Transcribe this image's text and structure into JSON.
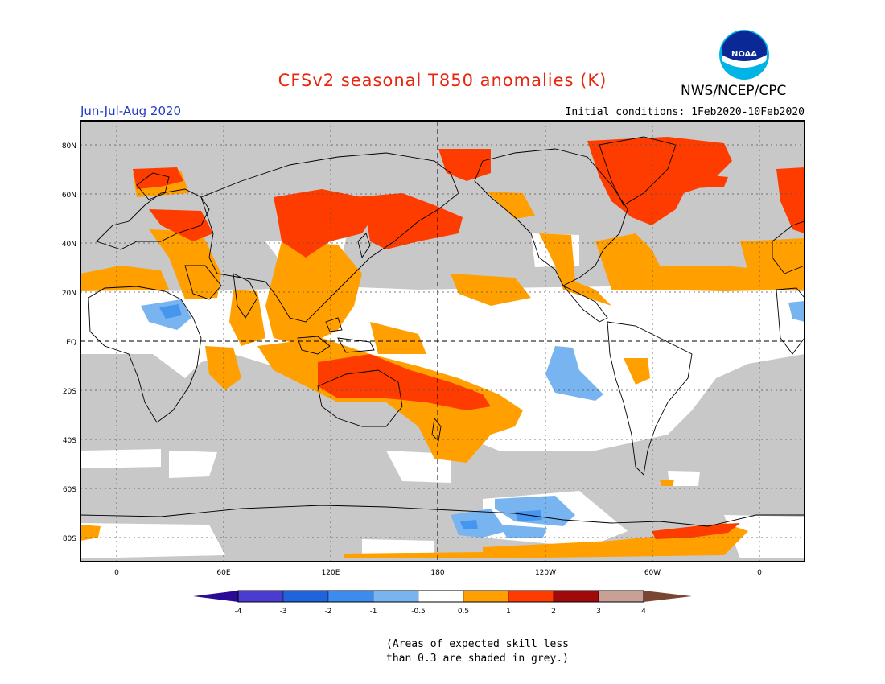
{
  "header": {
    "title": "CFSv2 seasonal T850 anomalies (K)",
    "agency": "NWS/NCEP/CPC",
    "season": "Jun-Jul-Aug 2020",
    "initial_conditions": "Initial conditions: 1Feb2020-10Feb2020"
  },
  "logo": {
    "text": "NOAA"
  },
  "map": {
    "lat_labels": [
      "80N",
      "60N",
      "40N",
      "20N",
      "EQ",
      "20S",
      "40S",
      "60S",
      "80S"
    ],
    "lon_labels": [
      "0",
      "60E",
      "120E",
      "180",
      "120W",
      "60W",
      "0"
    ],
    "colors": {
      "grey": "#c8c8c8",
      "orange": "#ffa000",
      "red": "#ff3c00",
      "lightblue": "#78b4f0",
      "blue": "#4696f0"
    }
  },
  "colorbar": {
    "labels": [
      "-4",
      "-3",
      "-2",
      "-1",
      "-0.5",
      "0.5",
      "1",
      "2",
      "3",
      "4"
    ],
    "colors": [
      "#2a0a96",
      "#4a3cd0",
      "#1e64dc",
      "#3c8cf0",
      "#78b4f0",
      "#ffffff",
      "#ffa000",
      "#ff3c00",
      "#a00a0a",
      "#c8a096",
      "#784632"
    ]
  },
  "footnote": {
    "line1": "(Areas of expected skill less",
    "line2": "than 0.3 are shaded in grey.)"
  }
}
